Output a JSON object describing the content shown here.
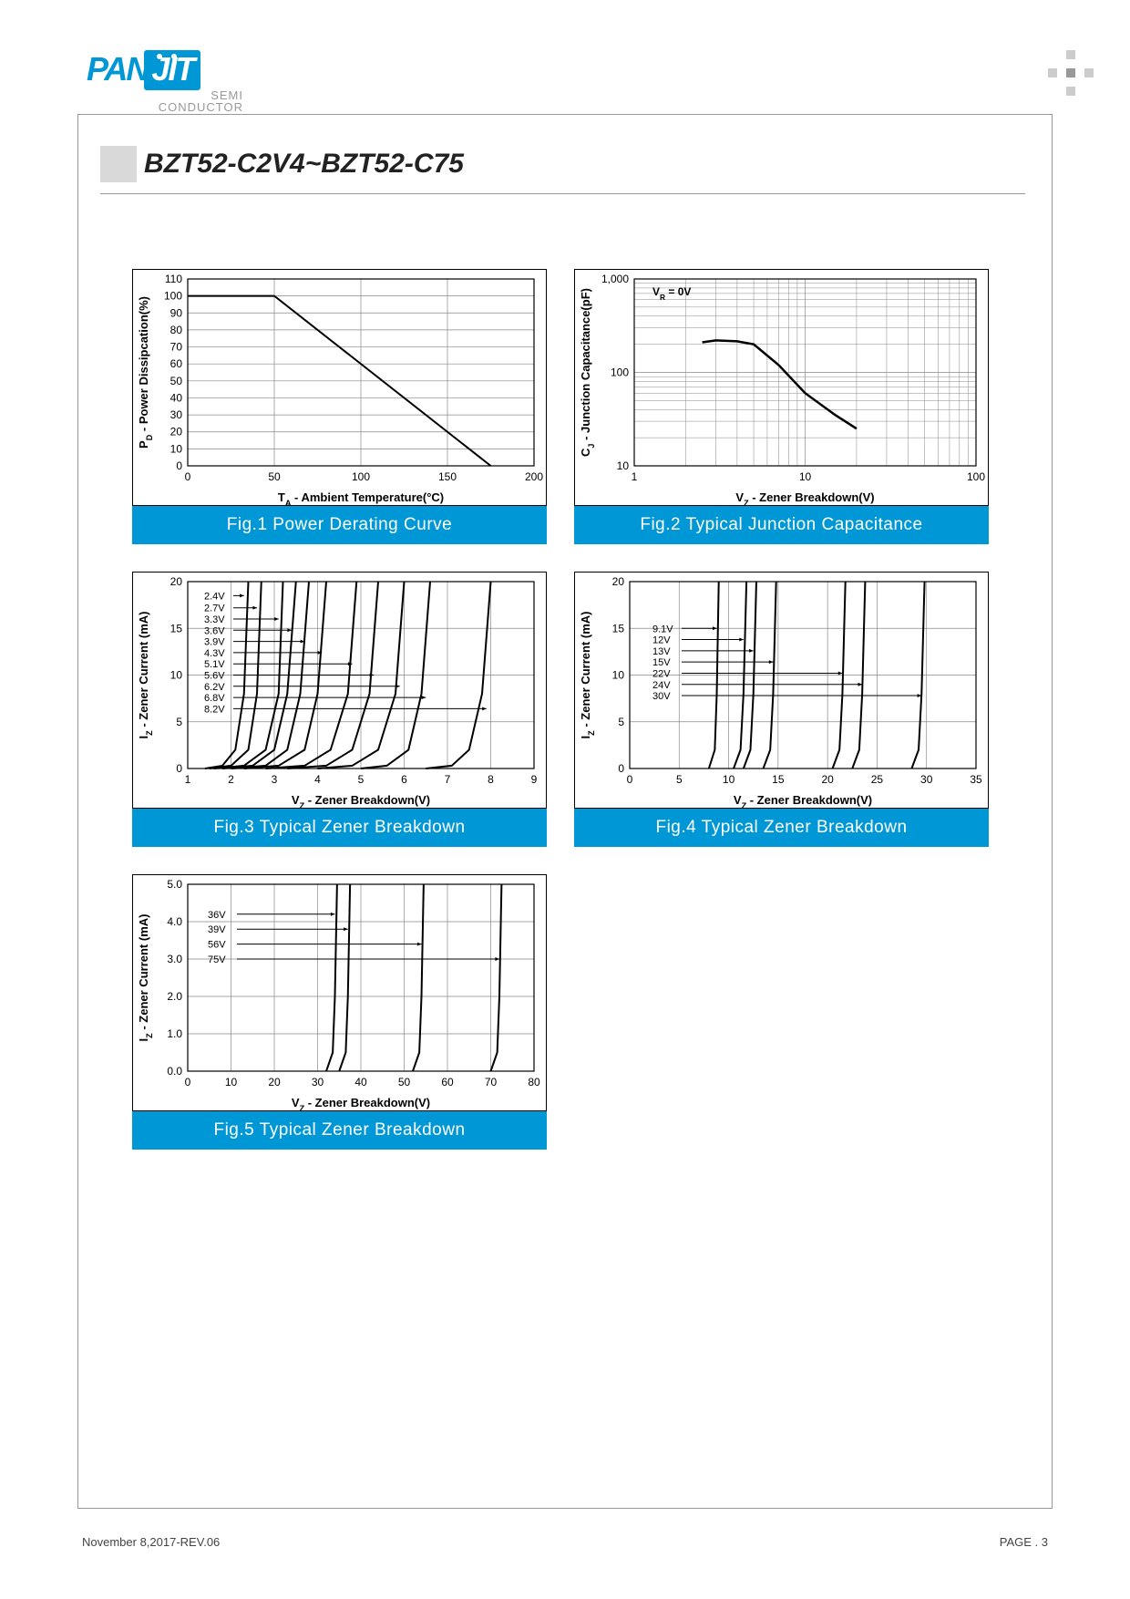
{
  "logo": {
    "brand1": "PAN",
    "brand2": "JIT",
    "sub1": "SEMI",
    "sub2": "CONDUCTOR"
  },
  "title": "BZT52-C2V4~BZT52-C75",
  "footer": {
    "left": "November 8,2017-REV.06",
    "right_label": "PAGE .",
    "right_num": "3"
  },
  "fig1": {
    "type": "line",
    "caption": "Fig.1 Power Derating Curve",
    "xlabel": "T_A - Ambient Temperature(°C)",
    "ylabel": "P_D - Power Dissipcation(%)",
    "xlim": [
      0,
      200
    ],
    "xticks": [
      0,
      50,
      100,
      150,
      200
    ],
    "ylim": [
      0,
      110
    ],
    "yticks": [
      0,
      10,
      20,
      30,
      40,
      50,
      60,
      70,
      80,
      90,
      100,
      110
    ],
    "grid_color": "#888",
    "line_color": "#000",
    "line_width": 2,
    "data": [
      [
        0,
        100
      ],
      [
        25,
        100
      ],
      [
        50,
        100
      ],
      [
        175,
        0
      ]
    ]
  },
  "fig2": {
    "type": "line",
    "caption": "Fig.2 Typical Junction Capacitance",
    "xlabel": "V_Z - Zener Breakdown(V)",
    "ylabel": "C_J - Junction Capacitance(pF)",
    "annotation": "V_R = 0V",
    "xscale": "log",
    "xlim": [
      1,
      100
    ],
    "xticks": [
      1,
      10,
      100
    ],
    "yscale": "log",
    "ylim": [
      10,
      1000
    ],
    "yticks": [
      10,
      100,
      1000
    ],
    "grid_color": "#888",
    "line_color": "#000",
    "line_width": 2.5,
    "data": [
      [
        2.5,
        210
      ],
      [
        3,
        220
      ],
      [
        4,
        215
      ],
      [
        5,
        200
      ],
      [
        7,
        120
      ],
      [
        10,
        60
      ],
      [
        15,
        35
      ],
      [
        20,
        25
      ]
    ]
  },
  "fig3": {
    "type": "multi-line",
    "caption": "Fig.3 Typical Zener Breakdown",
    "xlabel": "V_Z - Zener Breakdown(V)",
    "ylabel": "I_Z - Zener Current (mA)",
    "xlim": [
      1,
      9
    ],
    "xticks": [
      1,
      2,
      3,
      4,
      5,
      6,
      7,
      8,
      9
    ],
    "ylim": [
      0,
      20
    ],
    "yticks": [
      0,
      5,
      10,
      15,
      20
    ],
    "grid_color": "#888",
    "line_color": "#000",
    "line_width": 2,
    "label_fontsize": 11,
    "series": [
      {
        "label": "2.4V",
        "label_y": 18.5,
        "arrow_to_x": 2.3,
        "data": [
          [
            1.4,
            0
          ],
          [
            1.8,
            0.3
          ],
          [
            2.1,
            2
          ],
          [
            2.3,
            8
          ],
          [
            2.4,
            20
          ]
        ]
      },
      {
        "label": "2.7V",
        "label_y": 17.2,
        "arrow_to_x": 2.6,
        "data": [
          [
            1.5,
            0
          ],
          [
            2.0,
            0.3
          ],
          [
            2.4,
            2
          ],
          [
            2.6,
            8
          ],
          [
            2.7,
            20
          ]
        ]
      },
      {
        "label": "3.3V",
        "label_y": 16.0,
        "arrow_to_x": 3.1,
        "data": [
          [
            1.6,
            0
          ],
          [
            2.3,
            0.3
          ],
          [
            2.8,
            2
          ],
          [
            3.1,
            8
          ],
          [
            3.2,
            20
          ]
        ]
      },
      {
        "label": "3.6V",
        "label_y": 14.8,
        "arrow_to_x": 3.4,
        "data": [
          [
            1.8,
            0
          ],
          [
            2.5,
            0.3
          ],
          [
            3.0,
            2
          ],
          [
            3.3,
            8
          ],
          [
            3.5,
            20
          ]
        ]
      },
      {
        "label": "3.9V",
        "label_y": 13.6,
        "arrow_to_x": 3.7,
        "data": [
          [
            2.0,
            0
          ],
          [
            2.8,
            0.3
          ],
          [
            3.3,
            2
          ],
          [
            3.6,
            8
          ],
          [
            3.8,
            20
          ]
        ]
      },
      {
        "label": "4.3V",
        "label_y": 12.4,
        "arrow_to_x": 4.1,
        "data": [
          [
            2.3,
            0
          ],
          [
            3.1,
            0.3
          ],
          [
            3.7,
            2
          ],
          [
            4.0,
            8
          ],
          [
            4.2,
            20
          ]
        ]
      },
      {
        "label": "5.1V",
        "label_y": 11.2,
        "arrow_to_x": 4.8,
        "data": [
          [
            2.8,
            0
          ],
          [
            3.7,
            0.3
          ],
          [
            4.3,
            2
          ],
          [
            4.7,
            8
          ],
          [
            4.9,
            20
          ]
        ]
      },
      {
        "label": "5.6V",
        "label_y": 10.0,
        "arrow_to_x": 5.3,
        "data": [
          [
            3.3,
            0
          ],
          [
            4.2,
            0.3
          ],
          [
            4.8,
            2
          ],
          [
            5.2,
            8
          ],
          [
            5.4,
            20
          ]
        ]
      },
      {
        "label": "6.2V",
        "label_y": 8.8,
        "arrow_to_x": 5.9,
        "data": [
          [
            4.0,
            0
          ],
          [
            4.8,
            0.3
          ],
          [
            5.4,
            2
          ],
          [
            5.8,
            8
          ],
          [
            6.0,
            20
          ]
        ]
      },
      {
        "label": "6.8V",
        "label_y": 7.6,
        "arrow_to_x": 6.5,
        "data": [
          [
            5.0,
            0
          ],
          [
            5.6,
            0.3
          ],
          [
            6.1,
            2
          ],
          [
            6.4,
            8
          ],
          [
            6.6,
            20
          ]
        ]
      },
      {
        "label": "8.2V",
        "label_y": 6.4,
        "arrow_to_x": 7.9,
        "data": [
          [
            6.5,
            0
          ],
          [
            7.1,
            0.3
          ],
          [
            7.5,
            2
          ],
          [
            7.8,
            8
          ],
          [
            8.0,
            20
          ]
        ]
      }
    ]
  },
  "fig4": {
    "type": "multi-line",
    "caption": "Fig.4 Typical Zener Breakdown",
    "xlabel": "V_Z - Zener Breakdown(V)",
    "ylabel": "I_Z - Zener Current (mA)",
    "xlim": [
      0,
      35
    ],
    "xticks": [
      0,
      5,
      10,
      15,
      20,
      25,
      30,
      35
    ],
    "ylim": [
      0,
      20
    ],
    "yticks": [
      0,
      5,
      10,
      15,
      20
    ],
    "grid_color": "#888",
    "line_color": "#000",
    "line_width": 2,
    "label_fontsize": 11,
    "series": [
      {
        "label": "9.1V",
        "label_y": 15.0,
        "arrow_to_x": 8.8,
        "data": [
          [
            8.0,
            0
          ],
          [
            8.6,
            2
          ],
          [
            8.8,
            8
          ],
          [
            9.0,
            20
          ]
        ]
      },
      {
        "label": "12V",
        "label_y": 13.8,
        "arrow_to_x": 11.5,
        "data": [
          [
            10.5,
            0
          ],
          [
            11.2,
            2
          ],
          [
            11.5,
            8
          ],
          [
            11.8,
            20
          ]
        ]
      },
      {
        "label": "13V",
        "label_y": 12.6,
        "arrow_to_x": 12.5,
        "data": [
          [
            11.5,
            0
          ],
          [
            12.2,
            2
          ],
          [
            12.5,
            8
          ],
          [
            12.8,
            20
          ]
        ]
      },
      {
        "label": "15V",
        "label_y": 11.4,
        "arrow_to_x": 14.5,
        "data": [
          [
            13.5,
            0
          ],
          [
            14.2,
            2
          ],
          [
            14.5,
            8
          ],
          [
            14.8,
            20
          ]
        ]
      },
      {
        "label": "22V",
        "label_y": 10.2,
        "arrow_to_x": 21.5,
        "data": [
          [
            20.5,
            0
          ],
          [
            21.2,
            2
          ],
          [
            21.5,
            8
          ],
          [
            21.8,
            20
          ]
        ]
      },
      {
        "label": "24V",
        "label_y": 9.0,
        "arrow_to_x": 23.5,
        "data": [
          [
            22.5,
            0
          ],
          [
            23.2,
            2
          ],
          [
            23.5,
            8
          ],
          [
            23.8,
            20
          ]
        ]
      },
      {
        "label": "30V",
        "label_y": 7.8,
        "arrow_to_x": 29.5,
        "data": [
          [
            28.5,
            0
          ],
          [
            29.2,
            2
          ],
          [
            29.5,
            8
          ],
          [
            29.8,
            20
          ]
        ]
      }
    ]
  },
  "fig5": {
    "type": "multi-line",
    "caption": "Fig.5 Typical Zener Breakdown",
    "xlabel": "V_Z - Zener Breakdown(V)",
    "ylabel": "I_Z - Zener Current (mA)",
    "xlim": [
      0,
      80
    ],
    "xticks": [
      0,
      10,
      20,
      30,
      40,
      50,
      60,
      70,
      80
    ],
    "ylim": [
      0,
      5
    ],
    "yticks": [
      0.0,
      1.0,
      2.0,
      3.0,
      4.0,
      5.0
    ],
    "grid_color": "#888",
    "line_color": "#000",
    "line_width": 2,
    "label_fontsize": 11,
    "series": [
      {
        "label": "36V",
        "label_y": 4.2,
        "arrow_to_x": 34,
        "data": [
          [
            32,
            0
          ],
          [
            33.5,
            0.5
          ],
          [
            34,
            2
          ],
          [
            34.5,
            5
          ]
        ]
      },
      {
        "label": "39V",
        "label_y": 3.8,
        "arrow_to_x": 37,
        "data": [
          [
            35,
            0
          ],
          [
            36.5,
            0.5
          ],
          [
            37,
            2
          ],
          [
            37.5,
            5
          ]
        ]
      },
      {
        "label": "56V",
        "label_y": 3.4,
        "arrow_to_x": 54,
        "data": [
          [
            52,
            0
          ],
          [
            53.5,
            0.5
          ],
          [
            54,
            2
          ],
          [
            54.5,
            5
          ]
        ]
      },
      {
        "label": "75V",
        "label_y": 3.0,
        "arrow_to_x": 72,
        "data": [
          [
            70,
            0
          ],
          [
            71.5,
            0.5
          ],
          [
            72,
            2
          ],
          [
            72.5,
            5
          ]
        ]
      }
    ]
  }
}
